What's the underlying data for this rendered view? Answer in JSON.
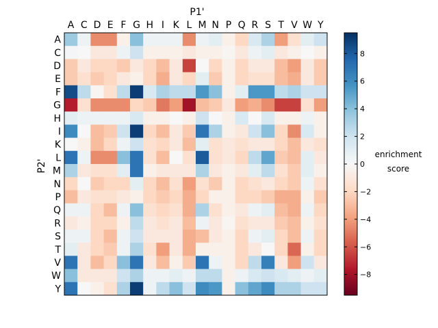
{
  "chart_data": {
    "type": "heatmap",
    "title": "",
    "xlabel": "P1'",
    "ylabel": "P2'",
    "colorbar_label_lines": [
      "enrichment",
      "score"
    ],
    "x_categories": [
      "A",
      "C",
      "D",
      "E",
      "F",
      "G",
      "H",
      "I",
      "K",
      "L",
      "M",
      "N",
      "P",
      "Q",
      "R",
      "S",
      "T",
      "V",
      "W",
      "Y"
    ],
    "y_categories": [
      "A",
      "C",
      "D",
      "E",
      "F",
      "G",
      "H",
      "I",
      "K",
      "L",
      "M",
      "N",
      "P",
      "Q",
      "R",
      "S",
      "T",
      "V",
      "W",
      "Y"
    ],
    "colorbar_ticks": [
      "8",
      "6",
      "4",
      "2",
      "0",
      "−2",
      "−4",
      "−6",
      "−8"
    ],
    "colorbar_tick_values": [
      8,
      6,
      4,
      2,
      0,
      -2,
      -4,
      -6,
      -8
    ],
    "vmin": -9.5,
    "vmax": 9.5,
    "colormap": "RdBu",
    "grid": false,
    "values": [
      [
        3.5,
        0.5,
        -4.5,
        -4.5,
        -0.5,
        4.0,
        0.5,
        0.5,
        0.5,
        -4.5,
        0.5,
        1.0,
        -0.5,
        -2.0,
        1.5,
        3.0,
        -4.0,
        -1.5,
        1.0,
        2.0
      ],
      [
        0.2,
        0.0,
        -1.0,
        -1.0,
        0.5,
        2.0,
        -0.5,
        -0.5,
        -0.5,
        -1.0,
        -0.5,
        -0.5,
        -0.2,
        -1.0,
        0.5,
        1.0,
        -1.0,
        -0.5,
        0.0,
        -0.5
      ],
      [
        -2.5,
        -1.0,
        -2.0,
        -2.0,
        -2.5,
        -1.0,
        -2.0,
        -3.0,
        -1.0,
        -6.5,
        0.0,
        -2.0,
        -0.5,
        -2.0,
        -1.0,
        -1.0,
        -3.0,
        -4.0,
        -1.0,
        -2.5
      ],
      [
        -2.5,
        -1.5,
        -2.5,
        -2.0,
        -1.0,
        -0.5,
        -2.0,
        -3.5,
        -1.0,
        -2.0,
        1.0,
        -2.5,
        -0.5,
        -2.0,
        -1.5,
        -1.5,
        -3.0,
        -3.5,
        -1.0,
        -2.5
      ],
      [
        8.5,
        2.5,
        -0.2,
        -1.5,
        2.5,
        9.0,
        1.5,
        3.0,
        2.5,
        2.5,
        5.5,
        4.0,
        -0.5,
        1.0,
        5.5,
        5.5,
        2.5,
        3.0,
        2.0,
        2.0
      ],
      [
        -7.5,
        -1.5,
        -4.5,
        -4.5,
        -4.5,
        -2.0,
        -2.5,
        -5.0,
        -4.0,
        -8.0,
        -3.0,
        -2.5,
        -1.0,
        -4.0,
        -3.5,
        -4.5,
        -6.5,
        -6.5,
        -1.5,
        -4.0
      ],
      [
        1.0,
        0.5,
        0.5,
        0.5,
        0.5,
        1.5,
        -0.5,
        -0.5,
        0.0,
        -0.5,
        2.0,
        0.0,
        -0.5,
        1.5,
        0.0,
        1.5,
        -0.5,
        -0.5,
        0.5,
        -0.5
      ],
      [
        6.0,
        0.0,
        -3.0,
        -2.5,
        2.0,
        9.0,
        -2.0,
        -3.0,
        -1.0,
        -2.5,
        7.0,
        3.0,
        -0.5,
        -1.0,
        2.0,
        4.0,
        -2.0,
        -4.5,
        1.5,
        -0.5
      ],
      [
        0.0,
        -0.5,
        -3.0,
        -2.0,
        0.5,
        2.0,
        -1.5,
        -2.0,
        -1.0,
        -3.0,
        1.0,
        -1.5,
        -1.0,
        -1.5,
        -1.0,
        -1.0,
        -2.0,
        -3.0,
        -1.0,
        -1.5
      ],
      [
        7.0,
        0.5,
        -4.5,
        -4.5,
        4.0,
        7.0,
        -1.5,
        -3.0,
        0.0,
        -1.5,
        8.0,
        -1.5,
        -1.0,
        -2.0,
        2.5,
        5.0,
        -2.5,
        -3.0,
        1.0,
        -1.0
      ],
      [
        3.0,
        -1.0,
        -1.5,
        -1.5,
        1.0,
        7.0,
        -0.5,
        -1.0,
        -1.0,
        -1.0,
        3.0,
        -1.0,
        -0.5,
        -1.0,
        1.0,
        2.5,
        -1.5,
        -2.5,
        1.0,
        -0.5
      ],
      [
        -2.0,
        0.0,
        -2.5,
        -2.0,
        -2.0,
        1.0,
        -2.0,
        -3.0,
        -1.5,
        -4.0,
        -1.5,
        -2.5,
        -0.5,
        -2.0,
        -1.5,
        -1.0,
        -2.0,
        -2.5,
        0.5,
        -1.5
      ],
      [
        -3.0,
        -1.0,
        -1.5,
        -1.5,
        -1.0,
        -0.5,
        -2.0,
        -2.5,
        -2.0,
        -3.5,
        -2.0,
        -0.5,
        -0.5,
        -2.0,
        -2.0,
        -2.5,
        -3.5,
        -3.5,
        -0.5,
        -2.5
      ],
      [
        0.5,
        0.5,
        -2.0,
        -3.0,
        0.5,
        4.0,
        -1.5,
        -2.0,
        -1.5,
        -3.5,
        3.0,
        -1.5,
        -0.5,
        -1.0,
        0.5,
        1.0,
        -3.0,
        -3.5,
        0.5,
        -2.0
      ],
      [
        -1.0,
        -0.5,
        -2.0,
        -2.0,
        -0.5,
        2.5,
        -1.0,
        -1.5,
        -1.0,
        -3.0,
        0.5,
        -1.0,
        -0.2,
        -1.5,
        -1.0,
        -1.0,
        -2.5,
        -3.0,
        -0.5,
        -1.5
      ],
      [
        0.5,
        0.5,
        -2.0,
        -3.0,
        0.5,
        2.0,
        -1.0,
        -1.0,
        -1.0,
        -3.5,
        -3.0,
        -1.0,
        -0.5,
        -2.0,
        0.5,
        1.0,
        -2.0,
        -3.0,
        0.5,
        -2.0
      ],
      [
        1.0,
        -1.0,
        -2.0,
        -2.5,
        0.5,
        3.0,
        -1.5,
        -4.0,
        -1.0,
        -3.5,
        -0.5,
        -0.5,
        -0.5,
        -2.0,
        -1.0,
        0.0,
        -2.0,
        -5.5,
        -0.5,
        -2.0
      ],
      [
        7.0,
        -1.0,
        -3.0,
        -2.0,
        4.0,
        7.0,
        -1.0,
        -3.0,
        -0.5,
        -2.5,
        7.0,
        0.5,
        -0.5,
        -2.0,
        2.5,
        6.5,
        -1.0,
        -4.0,
        2.0,
        -1.0
      ],
      [
        4.0,
        -1.0,
        -1.0,
        -1.0,
        2.0,
        3.0,
        0.5,
        0.5,
        1.0,
        0.5,
        2.5,
        2.5,
        -0.5,
        0.5,
        1.5,
        2.0,
        1.5,
        1.0,
        0.5,
        1.0
      ],
      [
        7.0,
        0.0,
        -0.5,
        -1.5,
        3.0,
        9.0,
        0.5,
        2.5,
        4.0,
        2.0,
        6.0,
        5.5,
        -0.5,
        4.0,
        5.0,
        6.0,
        3.0,
        3.0,
        2.0,
        2.0
      ]
    ]
  }
}
